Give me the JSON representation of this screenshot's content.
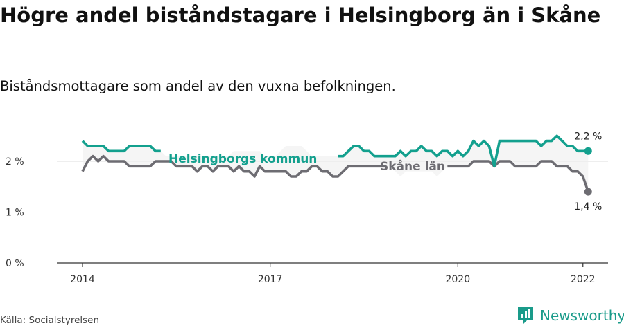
{
  "header": {
    "title": "Högre andel biståndstagare i Helsingborg än i Skåne",
    "subtitle": "Biståndsmottagare som andel av den vuxna befolkningen."
  },
  "footer": {
    "source": "Källa: Socialstyrelsen",
    "brand": "Newsworthy"
  },
  "colors": {
    "helsingborg": "#13a08e",
    "skane": "#6d6c72",
    "grid": "#dddddd",
    "band": "#efefef",
    "axis": "#333333"
  },
  "chart_data": {
    "type": "line",
    "x_start": "2014-01",
    "x_end": "2022-01",
    "x_ticks": [
      "2014",
      "2017",
      "2020",
      "2022"
    ],
    "y_ticks": [
      "0 %",
      "1 %",
      "2 %"
    ],
    "ylim": [
      0,
      2.6
    ],
    "grid": true,
    "series": [
      {
        "name": "Helsingborgs kommun",
        "color": "#13a08e",
        "end_label": "2,2 %",
        "values": [
          2.4,
          2.3,
          2.3,
          2.3,
          2.3,
          2.2,
          2.2,
          2.2,
          2.2,
          2.3,
          2.3,
          2.3,
          2.3,
          2.3,
          2.2,
          2.2,
          2.1,
          2.1,
          2.1,
          2.1,
          2.1,
          2.1,
          2.1,
          2.1,
          2.1,
          2.1,
          2.1,
          2.1,
          2.1,
          2.2,
          2.2,
          2.2,
          2.2,
          2.2,
          2.2,
          2.1,
          2.1,
          2.1,
          2.2,
          2.3,
          2.3,
          2.3,
          2.3,
          2.2,
          2.1,
          2.1,
          2.1,
          2.1,
          2.1,
          2.1,
          2.1,
          2.2,
          2.3,
          2.3,
          2.2,
          2.2,
          2.1,
          2.1,
          2.1,
          2.1,
          2.1,
          2.2,
          2.1,
          2.2,
          2.2,
          2.3,
          2.2,
          2.2,
          2.1,
          2.2,
          2.2,
          2.1,
          2.2,
          2.1,
          2.2,
          2.4,
          2.3,
          2.4,
          2.3,
          1.9,
          2.4,
          2.4,
          2.4,
          2.4,
          2.4,
          2.4,
          2.4,
          2.4,
          2.3,
          2.4,
          2.4,
          2.5,
          2.4,
          2.3,
          2.3,
          2.2,
          2.2,
          2.2
        ]
      },
      {
        "name": "Skåne län",
        "color": "#6d6c72",
        "end_label": "1,4 %",
        "values": [
          1.8,
          2.0,
          2.1,
          2.0,
          2.1,
          2.0,
          2.0,
          2.0,
          2.0,
          1.9,
          1.9,
          1.9,
          1.9,
          1.9,
          2.0,
          2.0,
          2.0,
          2.0,
          1.9,
          1.9,
          1.9,
          1.9,
          1.8,
          1.9,
          1.9,
          1.8,
          1.9,
          1.9,
          1.9,
          1.8,
          1.9,
          1.8,
          1.8,
          1.7,
          1.9,
          1.8,
          1.8,
          1.8,
          1.8,
          1.8,
          1.7,
          1.7,
          1.8,
          1.8,
          1.9,
          1.9,
          1.8,
          1.8,
          1.7,
          1.7,
          1.8,
          1.9,
          1.9,
          1.9,
          1.9,
          1.9,
          1.9,
          1.9,
          1.9,
          1.9,
          1.8,
          1.7,
          1.8,
          1.8,
          1.8,
          1.8,
          1.8,
          1.8,
          1.7,
          1.8,
          1.9,
          1.9,
          1.9,
          1.9,
          1.9,
          2.0,
          2.0,
          2.0,
          2.0,
          1.9,
          2.0,
          2.0,
          2.0,
          1.9,
          1.9,
          1.9,
          1.9,
          1.9,
          2.0,
          2.0,
          2.0,
          1.9,
          1.9,
          1.9,
          1.8,
          1.8,
          1.7,
          1.4
        ]
      }
    ]
  }
}
